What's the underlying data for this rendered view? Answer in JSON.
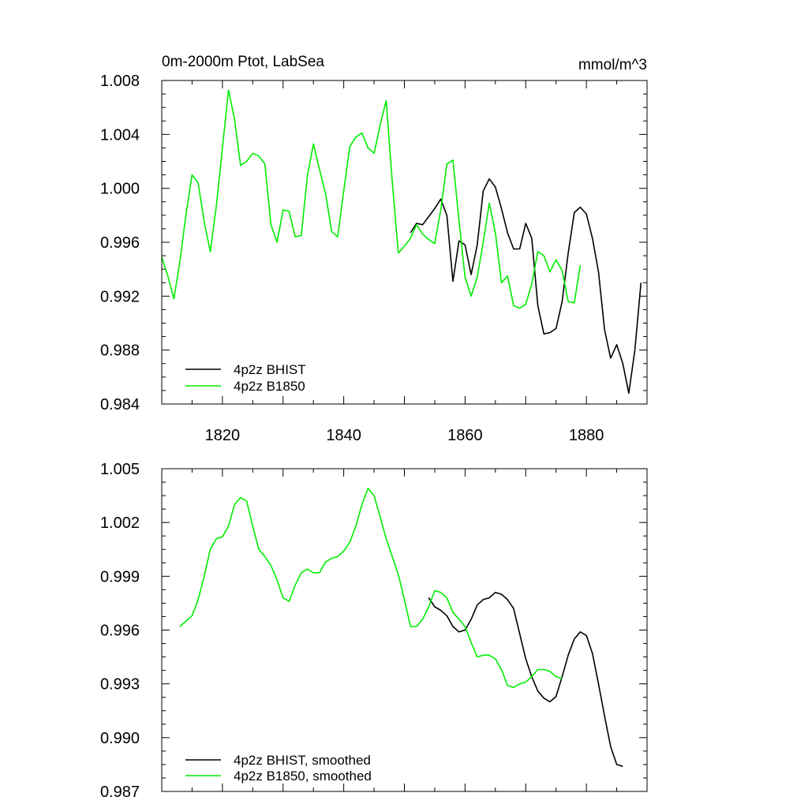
{
  "colors": {
    "bhist": "#000000",
    "b1850": "#00ee00",
    "axis": "#000000"
  },
  "chart_data": [
    {
      "type": "line",
      "title": "0m-2000m Ptot, LabSea",
      "units": "mmol/m^3",
      "xlabel": "",
      "ylabel": "",
      "xlim": [
        1810,
        1890
      ],
      "ylim": [
        0.984,
        1.008
      ],
      "yticks": [
        "1.008",
        "1.004",
        "1.000",
        "0.996",
        "0.992",
        "0.988",
        "0.984"
      ],
      "xticks": [
        "1820",
        "1840",
        "1860",
        "1880"
      ],
      "grid": false,
      "legend_position": "bottom-left",
      "series": [
        {
          "name": "4p2z BHIST",
          "color": "#000000",
          "x": [
            1851,
            1852,
            1853,
            1854,
            1855,
            1856,
            1857,
            1858,
            1859,
            1860,
            1861,
            1862,
            1863,
            1864,
            1865,
            1866,
            1867,
            1868,
            1869,
            1870,
            1871,
            1872,
            1873,
            1874,
            1875,
            1876,
            1877,
            1878,
            1879,
            1880,
            1881,
            1882,
            1883,
            1884,
            1885,
            1886,
            1887,
            1888,
            1889
          ],
          "y": [
            0.9967,
            0.9974,
            0.9973,
            0.9979,
            0.9985,
            0.9992,
            0.998,
            0.9931,
            0.9961,
            0.9958,
            0.9936,
            0.9958,
            0.9998,
            1.0007,
            1.0001,
            0.9985,
            0.9967,
            0.9955,
            0.9955,
            0.9974,
            0.9963,
            0.9913,
            0.9892,
            0.9893,
            0.9896,
            0.9916,
            0.9952,
            0.9982,
            0.9986,
            0.9981,
            0.9963,
            0.9938,
            0.9895,
            0.9874,
            0.9884,
            0.987,
            0.9848,
            0.988,
            0.993
          ]
        },
        {
          "name": "4p2z B1850",
          "color": "#00ee00",
          "x": [
            1810,
            1811,
            1812,
            1813,
            1814,
            1815,
            1816,
            1817,
            1818,
            1819,
            1820,
            1821,
            1822,
            1823,
            1824,
            1825,
            1826,
            1827,
            1828,
            1829,
            1830,
            1831,
            1832,
            1833,
            1834,
            1835,
            1836,
            1837,
            1838,
            1839,
            1840,
            1841,
            1842,
            1843,
            1844,
            1845,
            1846,
            1847,
            1848,
            1849,
            1850,
            1851,
            1852,
            1853,
            1854,
            1855,
            1856,
            1857,
            1858,
            1859,
            1860,
            1861,
            1862,
            1863,
            1864,
            1865,
            1866,
            1867,
            1868,
            1869,
            1870,
            1871,
            1872,
            1873,
            1874,
            1875,
            1876,
            1877,
            1878,
            1879
          ],
          "y": [
            0.9949,
            0.9935,
            0.9918,
            0.9946,
            0.9981,
            1.001,
            1.0004,
            0.9975,
            0.9953,
            0.9987,
            1.003,
            1.0073,
            1.0051,
            1.0017,
            1.002,
            1.0026,
            1.0024,
            1.0018,
            0.9973,
            0.996,
            0.9984,
            0.9983,
            0.9964,
            0.9965,
            1.0009,
            1.0033,
            1.0014,
            0.9996,
            0.9968,
            0.9964,
            0.9998,
            1.0031,
            1.0038,
            1.0041,
            1.003,
            1.0026,
            1.0047,
            1.0065,
            1.0005,
            0.9952,
            0.9957,
            0.9963,
            0.9973,
            0.9966,
            0.9962,
            0.9959,
            0.9984,
            1.0018,
            1.0021,
            0.9976,
            0.9934,
            0.992,
            0.9934,
            0.996,
            0.9989,
            0.9967,
            0.993,
            0.9935,
            0.9913,
            0.9911,
            0.9914,
            0.9929,
            0.9953,
            0.995,
            0.9938,
            0.9947,
            0.9939,
            0.9916,
            0.9915,
            0.9943
          ]
        }
      ]
    },
    {
      "type": "line",
      "title": "",
      "xlabel": "",
      "ylabel": "",
      "xlim": [
        1810,
        1890
      ],
      "ylim": [
        0.987,
        1.005
      ],
      "yticks": [
        "1.005",
        "1.002",
        "0.999",
        "0.996",
        "0.993",
        "0.990",
        "0.987"
      ],
      "grid": false,
      "legend_position": "bottom-left",
      "series": [
        {
          "name": "4p2z BHIST, smoothed",
          "color": "#000000",
          "x": [
            1854,
            1855,
            1856,
            1857,
            1858,
            1859,
            1860,
            1861,
            1862,
            1863,
            1864,
            1865,
            1866,
            1867,
            1868,
            1869,
            1870,
            1871,
            1872,
            1873,
            1874,
            1875,
            1876,
            1877,
            1878,
            1879,
            1880,
            1881,
            1882,
            1883,
            1884,
            1885,
            1886
          ],
          "y": [
            0.9978,
            0.9973,
            0.9971,
            0.9968,
            0.9962,
            0.9959,
            0.996,
            0.9966,
            0.9974,
            0.9977,
            0.9978,
            0.9981,
            0.998,
            0.9977,
            0.9972,
            0.9958,
            0.9944,
            0.9934,
            0.9926,
            0.9922,
            0.992,
            0.9923,
            0.9934,
            0.9946,
            0.9955,
            0.9959,
            0.9957,
            0.9947,
            0.993,
            0.9912,
            0.9895,
            0.9885,
            0.9884
          ]
        },
        {
          "name": "4p2z B1850, smoothed",
          "color": "#00ee00",
          "x": [
            1813,
            1814,
            1815,
            1816,
            1817,
            1818,
            1819,
            1820,
            1821,
            1822,
            1823,
            1824,
            1825,
            1826,
            1827,
            1828,
            1829,
            1830,
            1831,
            1832,
            1833,
            1834,
            1835,
            1836,
            1837,
            1838,
            1839,
            1840,
            1841,
            1842,
            1843,
            1844,
            1845,
            1846,
            1847,
            1848,
            1849,
            1850,
            1851,
            1852,
            1853,
            1854,
            1855,
            1856,
            1857,
            1858,
            1859,
            1860,
            1861,
            1862,
            1863,
            1864,
            1865,
            1866,
            1867,
            1868,
            1869,
            1870,
            1871,
            1872,
            1873,
            1874,
            1875,
            1876
          ],
          "y": [
            0.9962,
            0.9965,
            0.9968,
            0.9977,
            0.999,
            1.0005,
            1.0011,
            1.0012,
            1.0018,
            1.003,
            1.0034,
            1.0032,
            1.0018,
            1.0005,
            1.0001,
            0.9996,
            0.9988,
            0.9978,
            0.9976,
            0.9985,
            0.9992,
            0.9994,
            0.9992,
            0.9992,
            0.9998,
            1.0,
            1.0001,
            1.0004,
            1.0009,
            1.0018,
            1.003,
            1.0039,
            1.0035,
            1.0023,
            1.0011,
            1.0001,
            0.9991,
            0.9977,
            0.9962,
            0.9962,
            0.9966,
            0.9973,
            0.9982,
            0.9981,
            0.9978,
            0.997,
            0.9966,
            0.9962,
            0.9953,
            0.9945,
            0.9946,
            0.9946,
            0.9944,
            0.9938,
            0.9929,
            0.9928,
            0.993,
            0.9931,
            0.9934,
            0.9938,
            0.9938,
            0.9937,
            0.9934,
            0.9933
          ]
        }
      ]
    }
  ]
}
